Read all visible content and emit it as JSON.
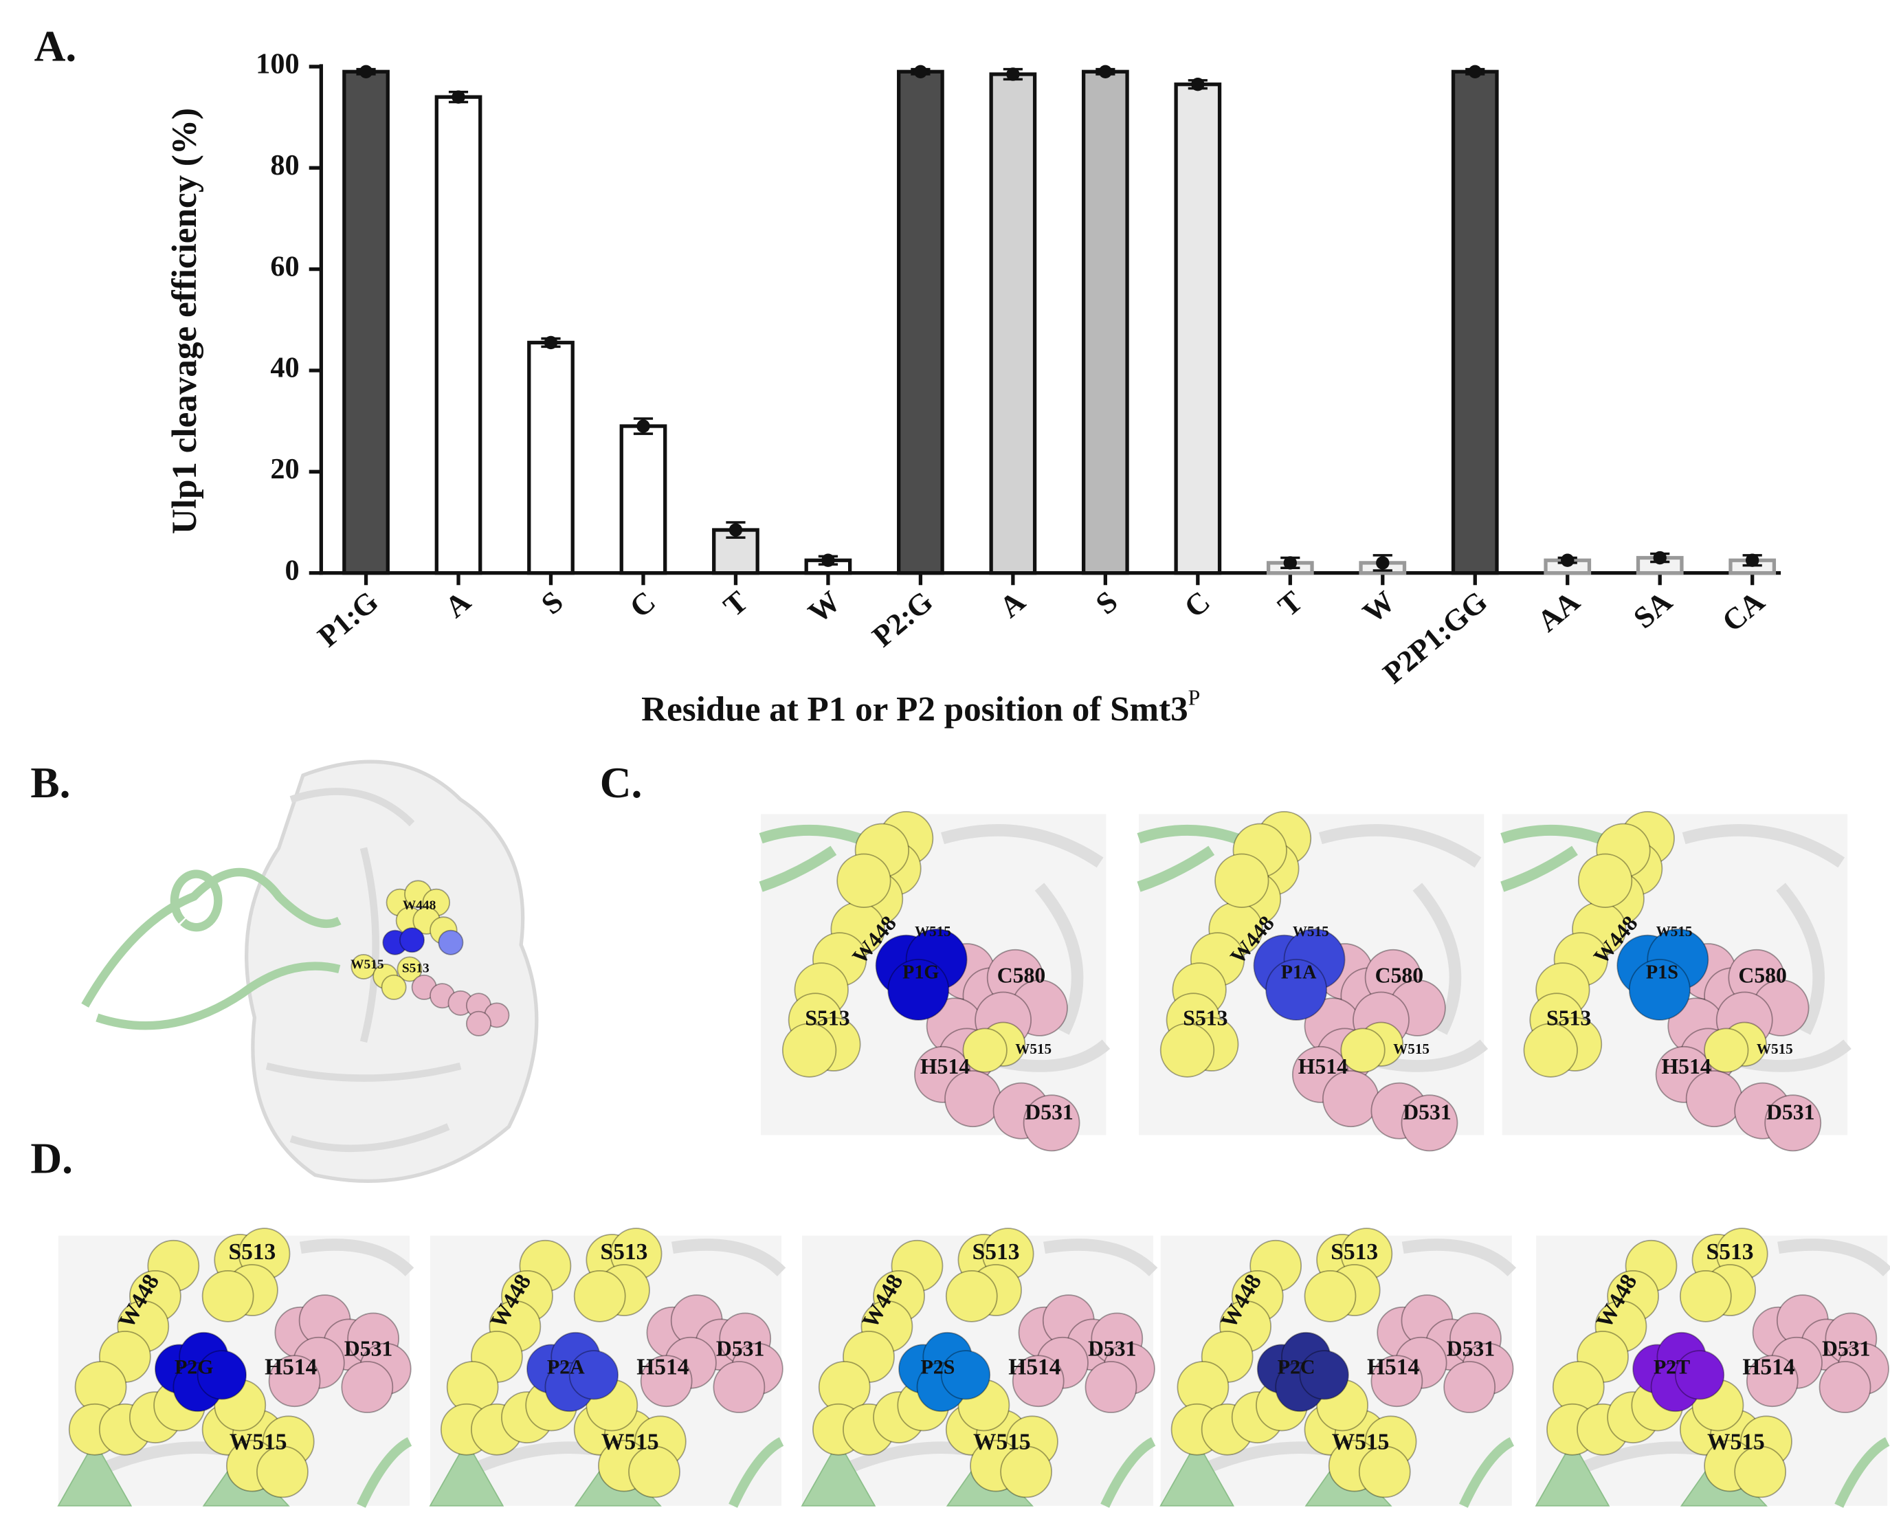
{
  "chart_data": {
    "type": "bar",
    "panel_label": "A.",
    "y_label": "Ulp1 cleavage  efficiency (%)",
    "x_label": "Residue at P1 or P2 position of Smt3",
    "x_label_superscript": "P",
    "categories": [
      "P1:G",
      "A",
      "S",
      "C",
      "T",
      "W",
      "P2:G",
      "A",
      "S",
      "C",
      "T",
      "W",
      "P2P1:GG",
      "AA",
      "SA",
      "CA"
    ],
    "values": [
      99,
      94,
      45.5,
      29,
      8.5,
      2.5,
      99,
      98.5,
      99,
      96.5,
      2,
      2,
      99,
      2.5,
      3,
      2.5
    ],
    "errors": [
      0.5,
      1,
      0.8,
      1.5,
      1.5,
      0.8,
      0.5,
      1,
      0.5,
      0.8,
      1,
      1.5,
      0.5,
      0.5,
      0.8,
      1
    ],
    "colors": [
      "#4d4d4d",
      "#ffffff",
      "#ffffff",
      "#ffffff",
      "#e2e2e2",
      "#ffffff",
      "#4d4d4d",
      "#d2d2d2",
      "#b9b9b9",
      "#e8e8e8",
      "#f2f2f2",
      "#f2f2f2",
      "#4d4d4d",
      "#f2f2f2",
      "#f2f2f2",
      "#f2f2f2"
    ],
    "edge_colors": [
      "#111111",
      "#111111",
      "#111111",
      "#111111",
      "#111111",
      "#111111",
      "#111111",
      "#111111",
      "#111111",
      "#111111",
      "#999999",
      "#999999",
      "#111111",
      "#999999",
      "#999999",
      "#999999"
    ],
    "ylim": [
      0,
      100
    ],
    "yticks": [
      0,
      20,
      40,
      60,
      80,
      100
    ]
  },
  "panel_b": {
    "label": "B.",
    "residues": [
      "W448",
      "W515",
      "S513"
    ]
  },
  "panel_c": {
    "label": "C.",
    "images": [
      [
        "W448",
        "W515",
        "P1G",
        "C580",
        "S513",
        "W515",
        "H514",
        "D531"
      ],
      [
        "W448",
        "W515",
        "P1A",
        "C580",
        "S513",
        "W515",
        "H514",
        "D531"
      ],
      [
        "W448",
        "W515",
        "P1S",
        "C580",
        "S513",
        "W515",
        "H514",
        "D531"
      ]
    ]
  },
  "panel_d": {
    "label": "D.",
    "images": [
      [
        "S513",
        "W448",
        "P2G",
        "H514",
        "D531",
        "W515"
      ],
      [
        "S513",
        "W448",
        "P2A",
        "H514",
        "D531",
        "W515"
      ],
      [
        "S513",
        "W448",
        "P2S",
        "H514",
        "D531",
        "W515"
      ],
      [
        "S513",
        "W448",
        "P2C",
        "H514",
        "D531",
        "W515"
      ],
      [
        "S513",
        "W448",
        "P2T",
        "H514",
        "D531",
        "W515"
      ]
    ]
  }
}
